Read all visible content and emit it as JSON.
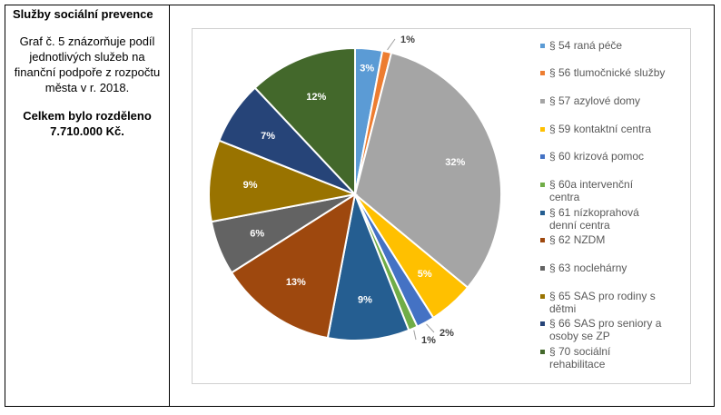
{
  "panel": {
    "title": "Služby sociální prevence",
    "description": "Graf č. 5 znázorňuje podíl jednotlivých služeb na finanční podpoře z rozpočtu města v r. 2018.",
    "total_text": "Celkem bylo rozděleno 7.710.000 Kč."
  },
  "chart_data": {
    "type": "pie",
    "title": "",
    "legend_position": "right",
    "slices": [
      {
        "label": "§ 54 raná péče",
        "value": 3,
        "value_label": "3%",
        "color": "#5B9BD5"
      },
      {
        "label": "§ 56 tlumočnické služby",
        "value": 1,
        "value_label": "1%",
        "color": "#ED7D31"
      },
      {
        "label": "§ 57 azylové domy",
        "value": 32,
        "value_label": "32%",
        "color": "#A5A5A5"
      },
      {
        "label": "§ 59 kontaktní centra",
        "value": 5,
        "value_label": "5%",
        "color": "#FFC000"
      },
      {
        "label": "§ 60 krizová pomoc",
        "value": 2,
        "value_label": "2%",
        "color": "#4472C4"
      },
      {
        "label": "§ 60a intervenční centra",
        "value": 1,
        "value_label": "1%",
        "color": "#70AD47"
      },
      {
        "label": "§ 61 nízkoprahová denní centra",
        "value": 9,
        "value_label": "9%",
        "color": "#255E91"
      },
      {
        "label": "§ 62 NZDM",
        "value": 13,
        "value_label": "13%",
        "color": "#9E480E"
      },
      {
        "label": "§ 63 noclehárny",
        "value": 6,
        "value_label": "6%",
        "color": "#636363"
      },
      {
        "label": "§ 65 SAS pro rodiny s dětmi",
        "value": 9,
        "value_label": "9%",
        "color": "#997300"
      },
      {
        "label": "§ 66 SAS pro seniory a osoby se ZP",
        "value": 7,
        "value_label": "7%",
        "color": "#264478"
      },
      {
        "label": "§ 70 sociální rehabilitace",
        "value": 12,
        "value_label": "12%",
        "color": "#43682B"
      }
    ]
  }
}
